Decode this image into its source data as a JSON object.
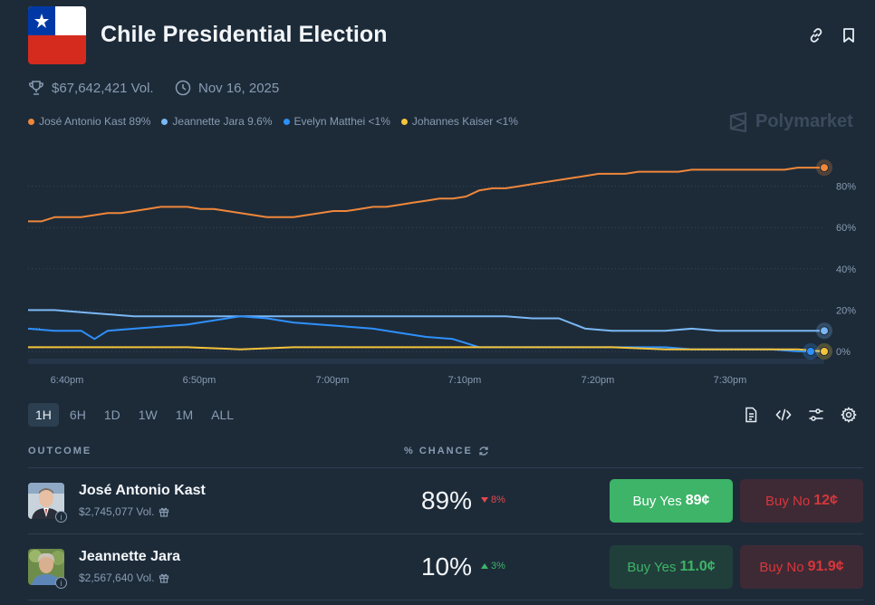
{
  "header": {
    "title": "Chile Presidential Election",
    "volume": "$67,642,421 Vol.",
    "date": "Nov 16, 2025",
    "brand": "Polymarket"
  },
  "legend": [
    {
      "label": "José Antonio Kast 89%",
      "color": "#f0873a"
    },
    {
      "label": "Jeannette Jara 9.6%",
      "color": "#7ab8f5"
    },
    {
      "label": "Evelyn Matthei <1%",
      "color": "#2e90fa"
    },
    {
      "label": "Johannes Kaiser <1%",
      "color": "#f5c33b"
    }
  ],
  "timeframes": [
    "1H",
    "6H",
    "1D",
    "1W",
    "1M",
    "ALL"
  ],
  "active_timeframe": "1H",
  "columns": {
    "outcome": "OUTCOME",
    "chance": "% CHANCE"
  },
  "outcomes": [
    {
      "name": "José Antonio Kast",
      "volume": "$2,745,077 Vol.",
      "chance": "89%",
      "change": "8%",
      "direction": "down",
      "buy_yes_label": "Buy Yes",
      "buy_yes_price": "89¢",
      "buy_no_label": "Buy No",
      "buy_no_price": "12¢"
    },
    {
      "name": "Jeannette Jara",
      "volume": "$2,567,640 Vol.",
      "chance": "10%",
      "change": "3%",
      "direction": "up",
      "buy_yes_label": "Buy Yes",
      "buy_yes_price": "11.0¢",
      "buy_no_label": "Buy No",
      "buy_no_price": "91.9¢"
    }
  ],
  "chart_data": {
    "type": "line",
    "x_ticks": [
      "6:40pm",
      "6:50pm",
      "7:00pm",
      "7:10pm",
      "7:20pm",
      "7:30pm"
    ],
    "y_ticks": [
      "80%",
      "60%",
      "40%",
      "20%",
      "0%"
    ],
    "ylim": [
      0,
      100
    ],
    "grid": true,
    "series": [
      {
        "name": "José Antonio Kast",
        "color": "#f0873a",
        "x": [
          0,
          1,
          2,
          3,
          4,
          5,
          6,
          7,
          8,
          9,
          10,
          11,
          12,
          13,
          14,
          15,
          16,
          17,
          18,
          19,
          20,
          21,
          22,
          23,
          24,
          25,
          26,
          27,
          28,
          29,
          30,
          31,
          32,
          33,
          34,
          35,
          36,
          37,
          38,
          39,
          40,
          41,
          42,
          43,
          44,
          45,
          46,
          47,
          48,
          49,
          50,
          51,
          52,
          53,
          54,
          55,
          56,
          57,
          58,
          59,
          60
        ],
        "y": [
          63,
          63,
          65,
          65,
          65,
          66,
          67,
          67,
          68,
          69,
          70,
          70,
          70,
          69,
          69,
          68,
          67,
          66,
          65,
          65,
          65,
          66,
          67,
          68,
          68,
          69,
          70,
          70,
          71,
          72,
          73,
          74,
          74,
          75,
          78,
          79,
          79,
          80,
          81,
          82,
          83,
          84,
          85,
          86,
          86,
          86,
          87,
          87,
          87,
          87,
          88,
          88,
          88,
          88,
          88,
          88,
          88,
          88,
          89,
          89,
          89
        ]
      },
      {
        "name": "Jeannette Jara",
        "color": "#7ab8f5",
        "x": [
          0,
          2,
          4,
          6,
          8,
          10,
          12,
          14,
          16,
          18,
          20,
          22,
          24,
          26,
          28,
          30,
          32,
          34,
          36,
          38,
          40,
          42,
          44,
          46,
          48,
          50,
          52,
          54,
          56,
          58,
          60
        ],
        "y": [
          20,
          20,
          19,
          18,
          17,
          17,
          17,
          17,
          17,
          17,
          17,
          17,
          17,
          17,
          17,
          17,
          17,
          17,
          17,
          16,
          16,
          11,
          10,
          10,
          10,
          11,
          10,
          10,
          10,
          10,
          10
        ]
      },
      {
        "name": "Evelyn Matthei",
        "color": "#2e90fa",
        "x": [
          0,
          2,
          4,
          5,
          6,
          8,
          10,
          12,
          14,
          16,
          18,
          20,
          22,
          24,
          26,
          28,
          30,
          32,
          34,
          36,
          38,
          40,
          42,
          44,
          46,
          48,
          50,
          52,
          54,
          56,
          58,
          60
        ],
        "y": [
          11,
          10,
          10,
          6,
          10,
          11,
          12,
          13,
          15,
          17,
          16,
          14,
          13,
          12,
          11,
          9,
          7,
          6,
          2,
          2,
          2,
          2,
          2,
          2,
          2,
          2,
          1,
          1,
          1,
          1,
          0,
          0
        ]
      },
      {
        "name": "Johannes Kaiser",
        "color": "#f5c33b",
        "x": [
          0,
          4,
          8,
          12,
          16,
          20,
          24,
          28,
          32,
          36,
          40,
          44,
          48,
          52,
          56,
          58,
          60
        ],
        "y": [
          2,
          2,
          2,
          2,
          1,
          2,
          2,
          2,
          2,
          2,
          2,
          2,
          1,
          1,
          1,
          1,
          0
        ]
      }
    ]
  }
}
